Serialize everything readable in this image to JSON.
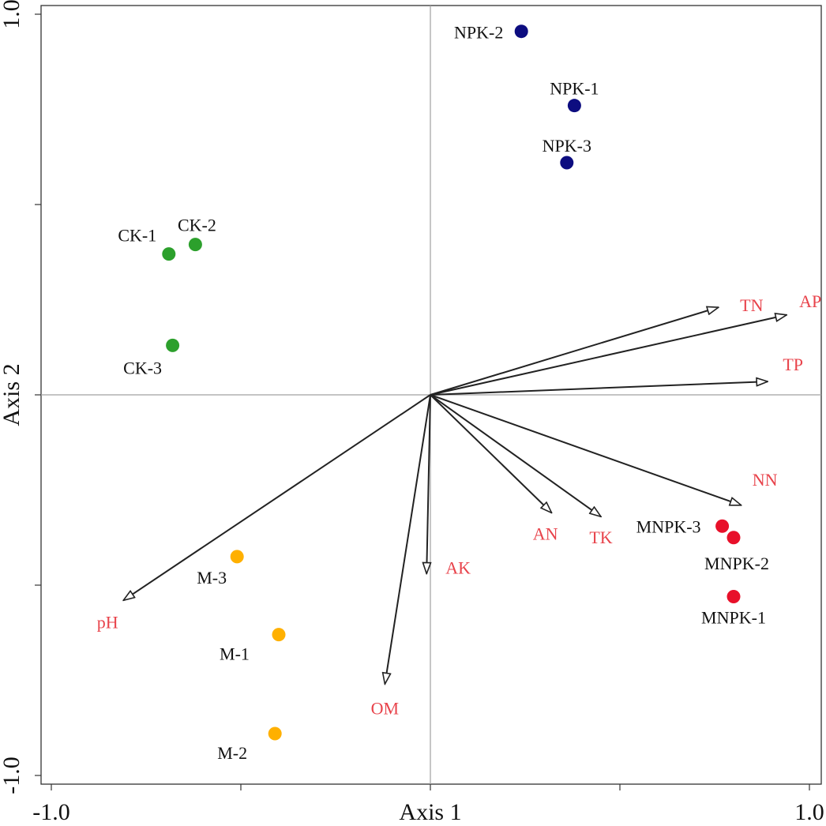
{
  "chart_data": {
    "type": "scatter",
    "xlabel": "Axis 1",
    "ylabel": "Axis 2",
    "xlim": [
      -1.0,
      1.0
    ],
    "ylim": [
      -1.0,
      1.0
    ],
    "x_tick_labels": [
      "-1.0",
      "1.0"
    ],
    "y_tick_labels": [
      "1.0",
      "-1.0"
    ],
    "grid": false,
    "reference_lines": [
      0,
      0
    ],
    "series": [
      {
        "color": "#2ca02c",
        "points": [
          {
            "label": "CK-1",
            "x": -0.69,
            "y": 0.37
          },
          {
            "label": "CK-2",
            "x": -0.62,
            "y": 0.395
          },
          {
            "label": "CK-3",
            "x": -0.68,
            "y": 0.13
          }
        ]
      },
      {
        "color": "#0d0d80",
        "points": [
          {
            "label": "NPK-1",
            "x": 0.38,
            "y": 0.76
          },
          {
            "label": "NPK-2",
            "x": 0.24,
            "y": 0.955
          },
          {
            "label": "NPK-3",
            "x": 0.36,
            "y": 0.61
          }
        ]
      },
      {
        "color": "#ffb000",
        "points": [
          {
            "label": "M-1",
            "x": -0.4,
            "y": -0.63
          },
          {
            "label": "M-2",
            "x": -0.41,
            "y": -0.89
          },
          {
            "label": "M-3",
            "x": -0.51,
            "y": -0.425
          }
        ]
      },
      {
        "color": "#e8102a",
        "points": [
          {
            "label": "MNPK-1",
            "x": 0.8,
            "y": -0.53
          },
          {
            "label": "MNPK-2",
            "x": 0.8,
            "y": -0.375
          },
          {
            "label": "MNPK-3",
            "x": 0.77,
            "y": -0.345
          }
        ]
      }
    ],
    "vectors": [
      {
        "label": "TN",
        "x": 0.76,
        "y": 0.23
      },
      {
        "label": "AP",
        "x": 0.94,
        "y": 0.21
      },
      {
        "label": "TP",
        "x": 0.89,
        "y": 0.035
      },
      {
        "label": "NN",
        "x": 0.82,
        "y": -0.29
      },
      {
        "label": "AN",
        "x": 0.32,
        "y": -0.31
      },
      {
        "label": "TK",
        "x": 0.45,
        "y": -0.32
      },
      {
        "label": "AK",
        "x": -0.01,
        "y": -0.47
      },
      {
        "label": "OM",
        "x": -0.12,
        "y": -0.76
      },
      {
        "label": "pH",
        "x": -0.81,
        "y": -0.54
      }
    ],
    "vector_label_color": "#e8434b",
    "point_label_color": "#111111"
  }
}
